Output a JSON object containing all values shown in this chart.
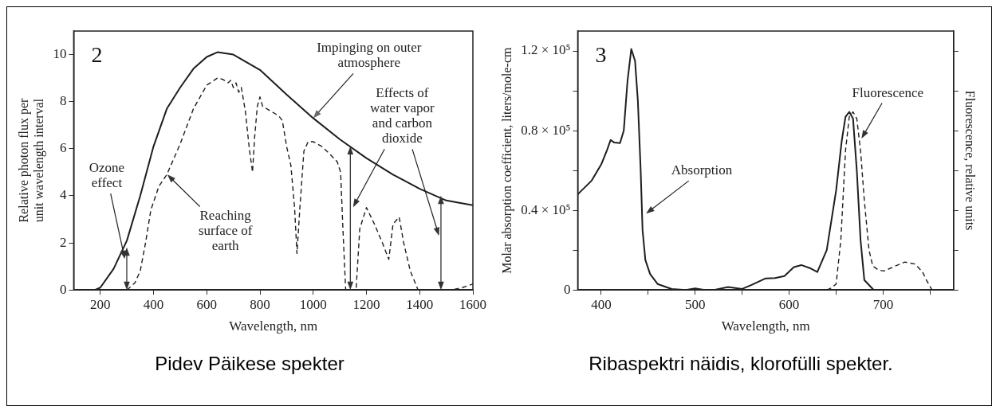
{
  "chart_data": [
    {
      "type": "line",
      "title": "2",
      "xlabel": "Wavelength, nm",
      "ylabel": "Relative photon flux per unit wavelength interval",
      "xlim": [
        100,
        1600
      ],
      "xticks": [
        200,
        400,
        600,
        800,
        1000,
        1200,
        1400,
        1600
      ],
      "ylim": [
        0,
        11
      ],
      "yticks": [
        0,
        2,
        4,
        6,
        8,
        10
      ],
      "grid": false,
      "legend": false,
      "marker": "none",
      "series": [
        {
          "color": "#1e1e1e",
          "line_style": "solid",
          "x": [
            100,
            180,
            200,
            250,
            300,
            350,
            400,
            450,
            500,
            550,
            600,
            640,
            700,
            800,
            900,
            1000,
            1100,
            1200,
            1300,
            1400,
            1500,
            1600
          ],
          "values": [
            0,
            0,
            0.1,
            0.9,
            2.1,
            4.0,
            6.1,
            7.7,
            8.6,
            9.4,
            9.9,
            10.1,
            10.0,
            9.35,
            8.3,
            7.3,
            6.4,
            5.6,
            4.9,
            4.3,
            3.8,
            3.6
          ]
        },
        {
          "color": "#1e1e1e",
          "line_style": "dashed",
          "x": [
            300,
            330,
            350,
            370,
            390,
            420,
            450,
            500,
            550,
            600,
            640,
            660,
            680,
            690,
            700,
            710,
            720,
            730,
            745,
            760,
            772,
            780,
            790,
            800,
            810,
            840,
            870,
            884,
            900,
            916,
            930,
            939,
            950,
            965,
            981,
            1000,
            1032,
            1060,
            1090,
            1103,
            1112,
            1122,
            1161,
            1175,
            1200,
            1230,
            1260,
            1284,
            1300,
            1323,
            1340,
            1365,
            1394,
            1520,
            1560,
            1600
          ],
          "values": [
            0,
            0.3,
            0.8,
            2.0,
            3.4,
            4.4,
            4.9,
            6.2,
            7.7,
            8.7,
            9.0,
            8.95,
            8.8,
            8.9,
            8.6,
            8.8,
            8.4,
            8.6,
            7.6,
            6.0,
            5.0,
            6.5,
            7.8,
            8.2,
            7.8,
            7.6,
            7.4,
            7.2,
            6.1,
            5.3,
            3.5,
            1.55,
            3.5,
            5.9,
            6.3,
            6.3,
            6.1,
            5.8,
            5.45,
            5.0,
            2.5,
            0,
            0,
            2.6,
            3.5,
            2.8,
            2.0,
            1.3,
            2.8,
            3.1,
            2.0,
            0.8,
            0,
            0,
            0.1,
            0.25
          ]
        }
      ],
      "annotations": [
        {
          "text": "Impinging on outer atmosphere",
          "x": 1000,
          "y": 7.3
        },
        "Ozone effect",
        {
          "text": "Reaching surface of earth",
          "x": 452,
          "y": 4.9
        },
        "Effects of water vapor and carbon dioxide",
        "Pidev Päikese spekter"
      ]
    },
    {
      "type": "line",
      "title": "3",
      "xlabel": "Wavelength, nm",
      "ylabel": "Molar absorption coefficient, liters/mole-cm",
      "y2label": "Fluorescence, relative units",
      "xlim": [
        375,
        775
      ],
      "xticks": [
        400,
        {
          "value": 450,
          "label": null
        },
        500,
        {
          "value": 550,
          "label": null
        },
        600,
        {
          "value": 650,
          "label": null
        },
        700,
        {
          "value": 750,
          "label": null
        }
      ],
      "ylim": [
        0,
        130000
      ],
      "yticks": [
        0,
        {
          "value": 20000,
          "label": null
        },
        {
          "value": 40000,
          "label": "0.4 × 10⁵"
        },
        {
          "value": 60000,
          "label": null
        },
        {
          "value": 80000,
          "label": "0.8 × 10⁵"
        },
        {
          "value": 100000,
          "label": null
        },
        {
          "value": 120000,
          "label": "1.2 × 10⁵"
        }
      ],
      "grid": false,
      "legend": false,
      "marker": "none",
      "series": [
        {
          "color": "#1e1e1e",
          "line_style": "solid",
          "x": [
            375,
            390,
            400,
            406,
            410,
            414,
            420,
            424,
            428,
            432,
            436,
            439,
            442,
            444,
            447,
            452,
            460,
            475,
            490,
            500,
            510,
            520,
            535,
            550,
            560,
            575,
            585,
            595,
            605,
            613,
            622,
            630,
            640,
            650,
            656,
            660,
            664,
            668,
            672,
            676,
            680,
            690
          ],
          "values": [
            48000,
            55000,
            63000,
            70000,
            75300,
            74000,
            73700,
            80000,
            105000,
            121000,
            115000,
            95000,
            60000,
            30000,
            15000,
            8000,
            3000,
            500,
            0,
            800,
            0,
            0,
            1500,
            500,
            2500,
            5800,
            6000,
            7000,
            11500,
            12500,
            11000,
            9000,
            20000,
            50000,
            75000,
            87000,
            89400,
            86000,
            60000,
            25000,
            5000,
            0
          ]
        },
        {
          "color": "#1e1e1e",
          "line_style": "dashed",
          "x": [
            640,
            645,
            650,
            655,
            660,
            664,
            668,
            672,
            676,
            680,
            685,
            689,
            695,
            701,
            713,
            723,
            734,
            742,
            746,
            752
          ],
          "values": [
            0,
            1000,
            3000,
            25000,
            70000,
            87000,
            89400,
            86000,
            70000,
            45000,
            20000,
            12000,
            10000,
            9500,
            12000,
            14000,
            13000,
            9000,
            5000,
            0
          ]
        }
      ],
      "annotations": [
        "Absorption",
        {
          "text": "Fluorescence",
          "x": 677,
          "y": 76000
        },
        "Ribaspektri näidis, klorofülli spekter."
      ]
    }
  ]
}
